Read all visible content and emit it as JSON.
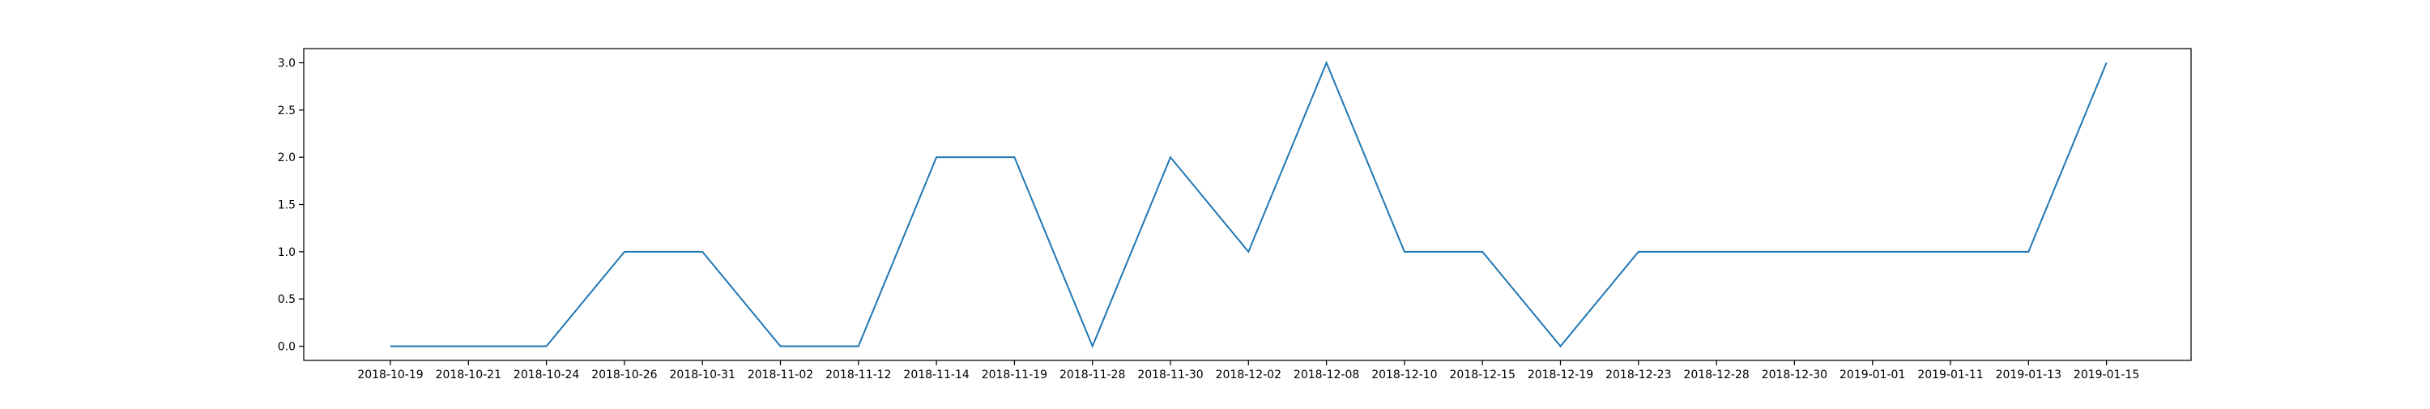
{
  "chart_data": {
    "type": "line",
    "title": "",
    "xlabel": "",
    "ylabel": "",
    "categories": [
      "2018-10-19",
      "2018-10-21",
      "2018-10-24",
      "2018-10-26",
      "2018-10-31",
      "2018-11-02",
      "2018-11-12",
      "2018-11-14",
      "2018-11-19",
      "2018-11-28",
      "2018-11-30",
      "2018-12-02",
      "2018-12-08",
      "2018-12-10",
      "2018-12-15",
      "2018-12-19",
      "2018-12-23",
      "2018-12-28",
      "2018-12-30",
      "2019-01-01",
      "2019-01-11",
      "2019-01-13",
      "2019-01-15"
    ],
    "series": [
      {
        "values": [
          0,
          0,
          0,
          1,
          1,
          0,
          0,
          2,
          2,
          0,
          2,
          1,
          3,
          1,
          1,
          0,
          1,
          1,
          1,
          1,
          1,
          1,
          3
        ],
        "color": "#1f77b4"
      }
    ],
    "ylim": [
      -0.15,
      3.15
    ],
    "yticks": [
      0.0,
      0.5,
      1.0,
      1.5,
      2.0,
      2.5,
      3.0
    ],
    "ytick_labels": [
      "0.0",
      "0.5",
      "1.0",
      "1.5",
      "2.0",
      "2.5",
      "3.0"
    ],
    "grid": false,
    "legend": "none"
  }
}
